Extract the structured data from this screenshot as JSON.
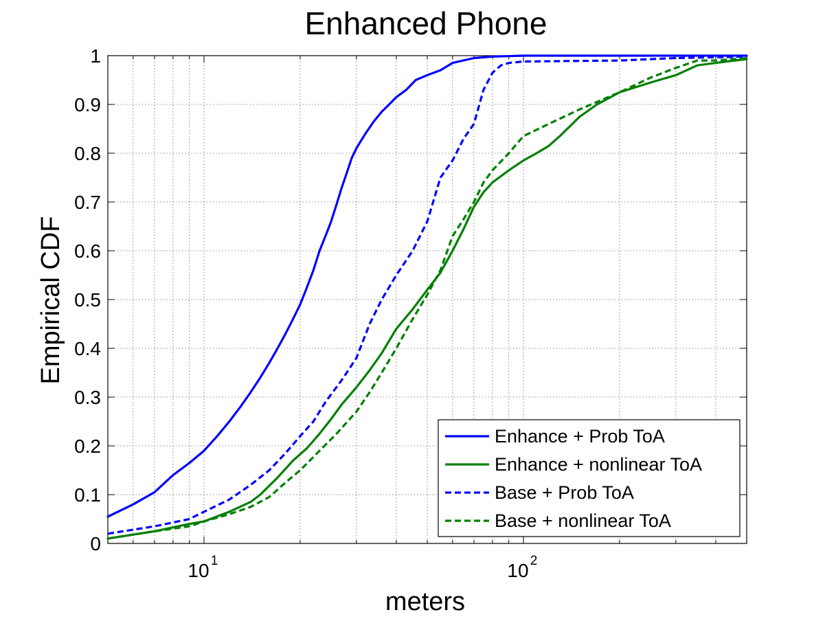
{
  "chart_data": {
    "type": "line",
    "title": "Enhanced Phone",
    "xlabel": "meters",
    "ylabel": "Empirical CDF",
    "x_scale": "log",
    "xlim": [
      5,
      500
    ],
    "ylim": [
      0,
      1
    ],
    "grid": true,
    "legend_position": "bottom-right",
    "x_ticks": [
      10,
      100
    ],
    "x_tick_labels": [
      {
        "base": "10",
        "exp": "1"
      },
      {
        "base": "10",
        "exp": "2"
      }
    ],
    "y_ticks": [
      0,
      0.1,
      0.2,
      0.3,
      0.4,
      0.5,
      0.6,
      0.7,
      0.8,
      0.9,
      1
    ],
    "y_tick_labels": [
      "0",
      "0.1",
      "0.2",
      "0.3",
      "0.4",
      "0.5",
      "0.6",
      "0.7",
      "0.8",
      "0.9",
      "1"
    ],
    "series": [
      {
        "name": "Enhance + Prob ToA",
        "color": "#0000ff",
        "style": "solid",
        "x": [
          5,
          6,
          7,
          8,
          9,
          10,
          11,
          12,
          13,
          14,
          15,
          16,
          17,
          18,
          19,
          20,
          21,
          22,
          23,
          24,
          25,
          26,
          27,
          28,
          29,
          30,
          32,
          34,
          36,
          38,
          40,
          43,
          46,
          50,
          55,
          60,
          70,
          80,
          90,
          100,
          150,
          200,
          300,
          500
        ],
        "y": [
          0.055,
          0.08,
          0.105,
          0.14,
          0.165,
          0.19,
          0.22,
          0.25,
          0.28,
          0.31,
          0.34,
          0.37,
          0.4,
          0.43,
          0.46,
          0.49,
          0.525,
          0.56,
          0.6,
          0.63,
          0.66,
          0.695,
          0.73,
          0.76,
          0.79,
          0.81,
          0.84,
          0.865,
          0.885,
          0.9,
          0.915,
          0.93,
          0.95,
          0.96,
          0.97,
          0.985,
          0.995,
          0.998,
          0.999,
          1,
          1,
          1,
          1,
          1
        ]
      },
      {
        "name": "Enhance + nonlinear ToA",
        "color": "#007f00",
        "style": "solid",
        "x": [
          5,
          7,
          9,
          10,
          12,
          14,
          15,
          17,
          19,
          21,
          23,
          25,
          27,
          30,
          33,
          36,
          40,
          45,
          50,
          55,
          60,
          65,
          70,
          75,
          80,
          90,
          100,
          110,
          120,
          130,
          150,
          170,
          200,
          250,
          300,
          350,
          400,
          500
        ],
        "y": [
          0.01,
          0.025,
          0.04,
          0.045,
          0.065,
          0.085,
          0.1,
          0.135,
          0.17,
          0.195,
          0.225,
          0.255,
          0.285,
          0.32,
          0.355,
          0.39,
          0.44,
          0.48,
          0.52,
          0.555,
          0.6,
          0.645,
          0.69,
          0.72,
          0.74,
          0.765,
          0.785,
          0.8,
          0.815,
          0.835,
          0.875,
          0.9,
          0.925,
          0.945,
          0.96,
          0.98,
          0.985,
          0.993
        ]
      },
      {
        "name": "Base + Prob ToA",
        "color": "#0000ff",
        "style": "dashed",
        "x": [
          5,
          7,
          9,
          10,
          12,
          14,
          16,
          18,
          20,
          22,
          24,
          27,
          30,
          33,
          36,
          40,
          45,
          50,
          55,
          60,
          65,
          70,
          75,
          80,
          85,
          90,
          100,
          200,
          300,
          500
        ],
        "y": [
          0.02,
          0.035,
          0.05,
          0.065,
          0.09,
          0.12,
          0.15,
          0.185,
          0.22,
          0.25,
          0.29,
          0.335,
          0.38,
          0.45,
          0.5,
          0.55,
          0.6,
          0.66,
          0.75,
          0.785,
          0.83,
          0.86,
          0.93,
          0.965,
          0.98,
          0.985,
          0.988,
          0.99,
          0.995,
          0.998
        ]
      },
      {
        "name": "Base + nonlinear ToA",
        "color": "#007f00",
        "style": "dashed",
        "x": [
          5,
          7,
          9,
          10,
          12,
          14,
          16,
          18,
          20,
          23,
          26,
          30,
          33,
          36,
          40,
          45,
          50,
          55,
          60,
          65,
          70,
          75,
          80,
          90,
          100,
          120,
          150,
          200,
          250,
          300,
          350,
          400,
          500
        ],
        "y": [
          0.01,
          0.025,
          0.035,
          0.045,
          0.06,
          0.075,
          0.095,
          0.125,
          0.15,
          0.19,
          0.225,
          0.27,
          0.31,
          0.35,
          0.4,
          0.46,
          0.51,
          0.56,
          0.63,
          0.665,
          0.7,
          0.74,
          0.765,
          0.8,
          0.835,
          0.86,
          0.89,
          0.925,
          0.955,
          0.975,
          0.99,
          0.99,
          0.995
        ]
      }
    ]
  }
}
